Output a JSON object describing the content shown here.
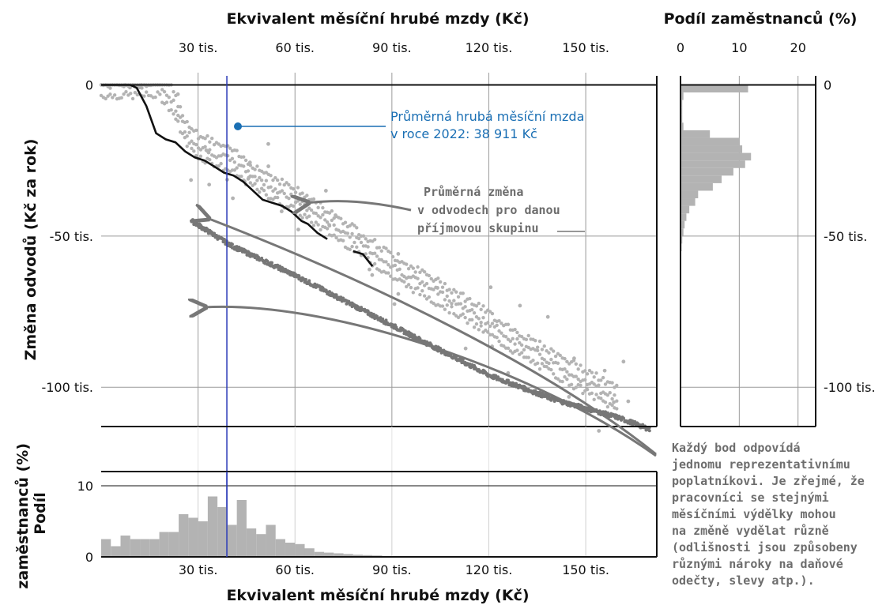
{
  "colors": {
    "gray_points": "#b3b3b3",
    "dark_points": "#777777",
    "mean_line": "#111111",
    "highlight_blue": "#1a6fb4",
    "vline_blue": "#2b3bb8",
    "hist_bar": "#b3b3b3",
    "grid": "#cfcfcf"
  },
  "chart_data": [
    {
      "type": "scatter",
      "xlabel": "Ekvivalent měsíční hrubé mzdy (Kč)",
      "ylabel": "Změna odvodů (Kč za rok)",
      "xlim": [
        0,
        172000
      ],
      "ylim": [
        -113000,
        3000
      ],
      "x_ticks": [
        30000,
        60000,
        90000,
        120000,
        150000
      ],
      "x_tick_labels": [
        "30 tis.",
        "60 tis.",
        "90 tis.",
        "120 tis.",
        "150 tis."
      ],
      "y_ticks": [
        0,
        -50000,
        -100000
      ],
      "y_tick_labels": [
        "0",
        "-50 tis.",
        "-100 tis."
      ],
      "grid": true,
      "reference_lines": {
        "y_zero": 0,
        "average_wage_x": 38911
      },
      "series": [
        {
          "style": "light-band",
          "points": [
            [
              0,
              0
            ],
            [
              18000,
              0
            ],
            [
              22000,
              -5000
            ],
            [
              26000,
              -15000
            ],
            [
              30000,
              -20000
            ],
            [
              40000,
              -25000
            ],
            [
              50000,
              -32000
            ],
            [
              60000,
              -38000
            ],
            [
              70000,
              -45000
            ],
            [
              80000,
              -52000
            ],
            [
              90000,
              -60000
            ],
            [
              100000,
              -66000
            ],
            [
              110000,
              -72000
            ],
            [
              120000,
              -79000
            ],
            [
              130000,
              -86000
            ],
            [
              140000,
              -92000
            ],
            [
              150000,
              -98000
            ],
            [
              160000,
              -104000
            ]
          ]
        },
        {
          "style": "dark-band",
          "points": [
            [
              28000,
              -45000
            ],
            [
              40000,
              -53000
            ],
            [
              60000,
              -63000
            ],
            [
              80000,
              -74000
            ],
            [
              100000,
              -85000
            ],
            [
              120000,
              -96000
            ],
            [
              140000,
              -104000
            ],
            [
              160000,
              -110000
            ],
            [
              170000,
              -114000
            ]
          ]
        },
        {
          "style": "mean-line",
          "points": [
            [
              0,
              0
            ],
            [
              9000,
              0
            ],
            [
              11000,
              -1000
            ],
            [
              14000,
              -7000
            ],
            [
              16000,
              -13000
            ],
            [
              17000,
              -16000
            ],
            [
              20000,
              -18000
            ],
            [
              23000,
              -19000
            ],
            [
              26000,
              -22000
            ],
            [
              29000,
              -24000
            ],
            [
              32000,
              -25000
            ],
            [
              35000,
              -27000
            ],
            [
              38000,
              -29000
            ],
            [
              41000,
              -30000
            ],
            [
              44000,
              -32000
            ],
            [
              47000,
              -35000
            ],
            [
              50000,
              -38000
            ],
            [
              53000,
              -39000
            ],
            [
              56000,
              -40000
            ],
            [
              59000,
              -42000
            ],
            [
              62000,
              -45000
            ],
            [
              64000,
              -46000
            ],
            [
              67000,
              -49000
            ],
            [
              70000,
              -51000
            ]
          ]
        },
        {
          "style": "mean-line",
          "points": [
            [
              78000,
              -55000
            ],
            [
              81000,
              -56000
            ],
            [
              84000,
              -60000
            ]
          ]
        }
      ]
    },
    {
      "type": "bar",
      "orientation": "vertical",
      "title": "Podíl zaměstnanců (%)",
      "xlabel": "Ekvivalent měsíční hrubé mzdy (Kč)",
      "ylabel": "Podíl zaměstnanců (%)",
      "xlim": [
        0,
        172000
      ],
      "ylim": [
        0,
        12
      ],
      "x_ticks": [
        30000,
        60000,
        90000,
        120000,
        150000
      ],
      "x_tick_labels": [
        "30 tis.",
        "60 tis.",
        "90 tis.",
        "120 tis.",
        "150 tis."
      ],
      "y_ticks": [
        0,
        10
      ],
      "y_tick_labels": [
        "0",
        "10"
      ],
      "bin_width": 3000,
      "bin_start": 0,
      "values": [
        2.5,
        1.5,
        3,
        2.5,
        2.5,
        2.5,
        3.5,
        3.5,
        6,
        5.5,
        5,
        8.5,
        7,
        4.5,
        8,
        4,
        3.2,
        4.5,
        2.5,
        2,
        1.8,
        1.2,
        0.7,
        0.6,
        0.5,
        0.4,
        0.3,
        0.25,
        0.2,
        0.1,
        0.1,
        0.05,
        0.05,
        0,
        0.03,
        0,
        0,
        0,
        0,
        0,
        0,
        0.03,
        0,
        0,
        0,
        0,
        0,
        0,
        0,
        0,
        0.02,
        0,
        0,
        0,
        0,
        0,
        0
      ]
    },
    {
      "type": "bar",
      "orientation": "horizontal",
      "title": "Podíl zaměstnanců (%)",
      "xlim": [
        0,
        23
      ],
      "x_ticks": [
        0,
        10,
        20
      ],
      "x_tick_labels": [
        "0",
        "10",
        "20"
      ],
      "ylim": [
        -113000,
        3000
      ],
      "y_ticks": [
        0,
        -50000,
        -100000
      ],
      "y_tick_labels": [
        "0",
        "-50 tis.",
        "-100 tis."
      ],
      "bin_width": 2500,
      "bin_start": 0,
      "values": [
        11.5,
        0.5,
        0.3,
        0.3,
        0.3,
        0.5,
        5,
        10,
        10.5,
        12,
        11,
        9,
        7,
        5.5,
        3,
        2.5,
        1.5,
        1,
        0.7,
        0.5,
        0.3,
        0.2,
        0.1,
        0.1,
        0.05,
        0.05,
        0.03
      ]
    }
  ],
  "annotations": {
    "average_wage_label": [
      "Průměrná hrubá měsíční mzda",
      "v roce 2022: 38 911 Kč"
    ],
    "mean_change_label": [
      "Průměrná změna",
      "v odvodech pro danou",
      "příjmovou skupinu"
    ],
    "point_note": [
      "Každý bod odpovídá",
      "jednomu reprezentativnímu",
      "poplatníkovi. Je zřejmé, že",
      "pracovníci se stejnými",
      "měsíčními výdělky mohou",
      "na změně vydělat různě",
      "(odlišnosti jsou způsobeny",
      "různými nároky na daňové",
      "odečty, slevy atp.)."
    ]
  }
}
